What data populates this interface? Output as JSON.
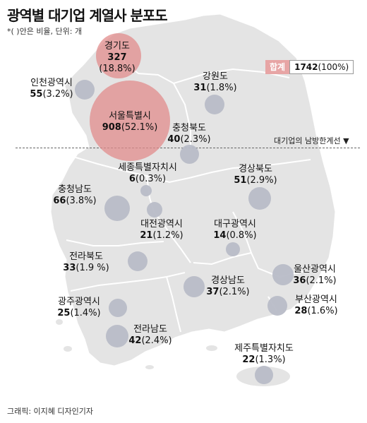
{
  "title": "광역별 대기업 계열사 분포도",
  "subtitle": "*( )안은 비율, 단위: 개",
  "total": {
    "label": "합계",
    "count": "1742",
    "percent": "(100%)"
  },
  "boundary_label": "대기업의 남방한계선 ▼",
  "credit": "그래픽: 이지혜 디자인기자",
  "regions": [
    {
      "name": "경기도",
      "count": "327",
      "percent": "(18.8%)"
    },
    {
      "name": "인천광역시",
      "count": "55",
      "percent": "(3.2%)"
    },
    {
      "name": "서울특별시",
      "count": "908",
      "percent": "(52.1%)"
    },
    {
      "name": "강원도",
      "count": "31",
      "percent": "(1.8%)"
    },
    {
      "name": "충청북도",
      "count": "40",
      "percent": "(2.3%)"
    },
    {
      "name": "세종특별자치시",
      "count": "6",
      "percent": "(0.3%)"
    },
    {
      "name": "경상북도",
      "count": "51",
      "percent": "(2.9%)"
    },
    {
      "name": "충청남도",
      "count": "66",
      "percent": "(3.8%)"
    },
    {
      "name": "대전광역시",
      "count": "21",
      "percent": "(1.2%)"
    },
    {
      "name": "대구광역시",
      "count": "14",
      "percent": "(0.8%)"
    },
    {
      "name": "전라북도",
      "count": "33",
      "percent": "(1.9 %)"
    },
    {
      "name": "울산광역시",
      "count": "36",
      "percent": "(2.1%)"
    },
    {
      "name": "경상남도",
      "count": "37",
      "percent": "(2.1%)"
    },
    {
      "name": "광주광역시",
      "count": "25",
      "percent": "(1.4%)"
    },
    {
      "name": "부산광역시",
      "count": "28",
      "percent": "(1.6%)"
    },
    {
      "name": "전라남도",
      "count": "42",
      "percent": "(2.4%)"
    },
    {
      "name": "제주특별자치도",
      "count": "22",
      "percent": "(1.3%)"
    }
  ]
}
